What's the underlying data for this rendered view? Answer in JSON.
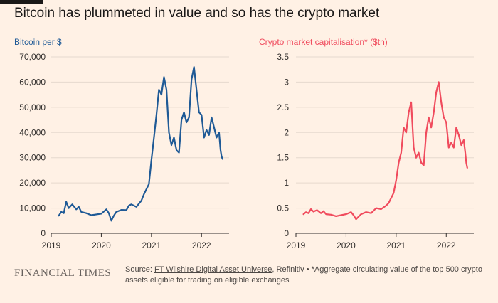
{
  "headline": "Bitcoin has plummeted in value and so has the crypto market",
  "colors": {
    "background": "#fff1e5",
    "bitcoin_series": "#1f5a96",
    "crypto_series": "#f04b5d",
    "axis": "#33302e",
    "gridline": "#e6d9ce"
  },
  "footer": {
    "brand": "FINANCIAL TIMES",
    "source_prefix": "Source: ",
    "source_link": "FT Wilshire Digital Asset Universe",
    "source_rest": ", Refinitiv • *Aggregate circulating value of the top 500 crypto assets eligible for trading on eligible exchanges"
  },
  "chart_data": [
    {
      "type": "line",
      "title": "Bitcoin per $",
      "title_color": "#1f5a96",
      "series_color": "#1f5a96",
      "xlabel": "",
      "ylabel": "",
      "xlim": [
        2019.0,
        2022.55
      ],
      "ylim": [
        0,
        70000
      ],
      "yticks": [
        0,
        10000,
        20000,
        30000,
        40000,
        50000,
        60000,
        70000
      ],
      "ytick_labels": [
        "0",
        "10,000",
        "20,000",
        "30,000",
        "40,000",
        "50,000",
        "60,000",
        "70,000"
      ],
      "xticks": [
        2019,
        2020,
        2021,
        2022
      ],
      "xtick_labels": [
        "2019",
        "2020",
        "2021",
        "2022"
      ],
      "grid": true,
      "x": [
        2019.15,
        2019.2,
        2019.25,
        2019.3,
        2019.35,
        2019.42,
        2019.5,
        2019.55,
        2019.6,
        2019.7,
        2019.8,
        2019.9,
        2020.0,
        2020.1,
        2020.15,
        2020.2,
        2020.25,
        2020.3,
        2020.4,
        2020.5,
        2020.55,
        2020.6,
        2020.7,
        2020.8,
        2020.85,
        2020.9,
        2020.95,
        2021.0,
        2021.05,
        2021.1,
        2021.15,
        2021.2,
        2021.25,
        2021.3,
        2021.35,
        2021.4,
        2021.45,
        2021.5,
        2021.55,
        2021.6,
        2021.65,
        2021.7,
        2021.75,
        2021.8,
        2021.85,
        2021.9,
        2021.95,
        2022.0,
        2022.05,
        2022.1,
        2022.15,
        2022.2,
        2022.25,
        2022.3,
        2022.35,
        2022.38,
        2022.4,
        2022.42
      ],
      "values": [
        7000,
        8500,
        8000,
        12500,
        10000,
        11500,
        9500,
        10500,
        8500,
        8000,
        7200,
        7500,
        7800,
        9500,
        8000,
        5000,
        7000,
        8500,
        9300,
        9200,
        11000,
        11500,
        10500,
        13000,
        15500,
        17500,
        19500,
        29000,
        38000,
        47000,
        57000,
        55000,
        62000,
        57000,
        40000,
        35000,
        38000,
        33000,
        32000,
        45000,
        48000,
        44000,
        46000,
        61000,
        66000,
        57000,
        48000,
        47000,
        38000,
        41000,
        39000,
        46000,
        42000,
        38000,
        40000,
        33000,
        30500,
        29500
      ]
    },
    {
      "type": "line",
      "title": "Crypto market capitalisation* ($tn)",
      "title_color": "#f04b5d",
      "series_color": "#f04b5d",
      "xlabel": "",
      "ylabel": "",
      "xlim": [
        2019.0,
        2022.55
      ],
      "ylim": [
        0,
        3.5
      ],
      "yticks": [
        0,
        0.5,
        1,
        1.5,
        2,
        2.5,
        3,
        3.5
      ],
      "ytick_labels": [
        "0",
        "0.5",
        "1",
        "1.5",
        "2",
        "2.5",
        "3",
        "3.5"
      ],
      "xticks": [
        2019,
        2020,
        2021,
        2022
      ],
      "xtick_labels": [
        "2019",
        "2020",
        "2021",
        "2022"
      ],
      "grid": true,
      "x": [
        2019.15,
        2019.2,
        2019.25,
        2019.3,
        2019.35,
        2019.42,
        2019.5,
        2019.55,
        2019.6,
        2019.7,
        2019.8,
        2019.9,
        2020.0,
        2020.1,
        2020.15,
        2020.2,
        2020.25,
        2020.3,
        2020.4,
        2020.5,
        2020.55,
        2020.6,
        2020.7,
        2020.8,
        2020.85,
        2020.9,
        2020.95,
        2021.0,
        2021.05,
        2021.1,
        2021.15,
        2021.2,
        2021.25,
        2021.3,
        2021.35,
        2021.4,
        2021.45,
        2021.5,
        2021.55,
        2021.6,
        2021.65,
        2021.7,
        2021.75,
        2021.8,
        2021.85,
        2021.9,
        2021.95,
        2022.0,
        2022.05,
        2022.1,
        2022.15,
        2022.2,
        2022.25,
        2022.3,
        2022.35,
        2022.38,
        2022.4,
        2022.42
      ],
      "values": [
        0.38,
        0.42,
        0.4,
        0.48,
        0.43,
        0.46,
        0.4,
        0.44,
        0.38,
        0.37,
        0.34,
        0.36,
        0.38,
        0.42,
        0.36,
        0.28,
        0.33,
        0.38,
        0.42,
        0.4,
        0.45,
        0.5,
        0.48,
        0.55,
        0.6,
        0.7,
        0.8,
        1.05,
        1.4,
        1.6,
        2.1,
        2.0,
        2.4,
        2.6,
        1.7,
        1.5,
        1.6,
        1.4,
        1.35,
        2.0,
        2.3,
        2.1,
        2.4,
        2.8,
        3.0,
        2.6,
        2.3,
        2.2,
        1.7,
        1.8,
        1.7,
        2.1,
        1.95,
        1.75,
        1.85,
        1.6,
        1.4,
        1.3
      ]
    }
  ]
}
